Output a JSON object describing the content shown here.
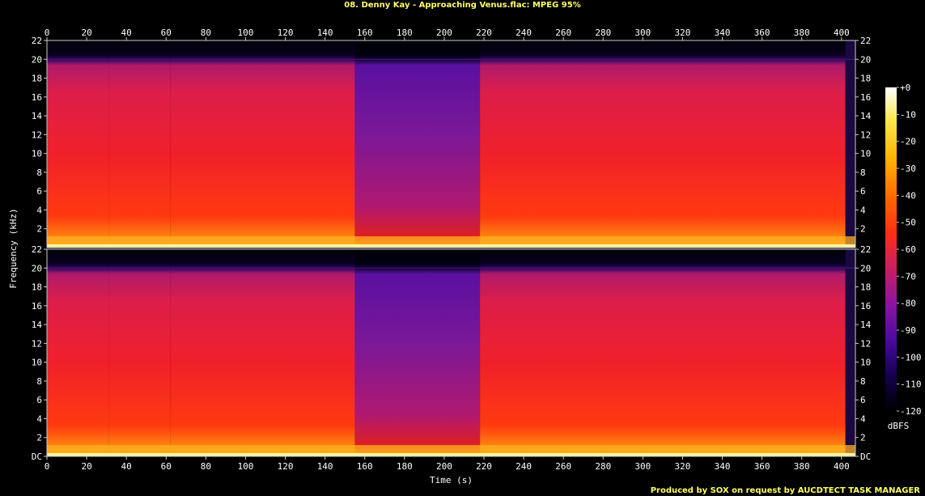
{
  "title": "08. Denny Kay - Approaching Venus.flac: MPEG 95%",
  "credit": "Produced by SOX on request by AUCDTECT TASK MANAGER",
  "chart_data": {
    "type": "heatmap",
    "title": "08. Denny Kay - Approaching Venus.flac: MPEG 95%",
    "xlabel": "Time (s)",
    "ylabel": "Frequency (kHz)",
    "colorbar_label": "dBFS",
    "xlim": [
      0,
      407
    ],
    "ylim": [
      0,
      22
    ],
    "x_ticks": [
      0,
      20,
      40,
      60,
      80,
      100,
      120,
      140,
      160,
      180,
      200,
      220,
      240,
      260,
      280,
      300,
      320,
      340,
      360,
      380,
      400
    ],
    "y_tick_labels": [
      "DC",
      "2",
      "4",
      "6",
      "8",
      "10",
      "12",
      "14",
      "16",
      "18",
      "20",
      "22"
    ],
    "y_tick_values": [
      0,
      2,
      4,
      6,
      8,
      10,
      12,
      14,
      16,
      18,
      20,
      22
    ],
    "colorbar_ticks": [
      "+0",
      "-10",
      "-20",
      "-30",
      "-40",
      "-50",
      "-60",
      "-70",
      "-80",
      "-90",
      "-100",
      "-110",
      "-120"
    ],
    "colorbar_range": [
      -120,
      0
    ],
    "channels": 2,
    "cutoff_khz": 20,
    "segments": [
      {
        "start": 0,
        "end": 31,
        "level": "loud"
      },
      {
        "start": 31,
        "end": 62,
        "level": "loud"
      },
      {
        "start": 62,
        "end": 155,
        "level": "loud"
      },
      {
        "start": 155,
        "end": 218,
        "level": "quiet"
      },
      {
        "start": 218,
        "end": 407,
        "level": "loud"
      }
    ],
    "colors": {
      "colormap": [
        "#000000",
        "#140050",
        "#4b0aa0",
        "#8c14a0",
        "#c81e64",
        "#ff2d14",
        "#ff6e00",
        "#ffb400",
        "#ffe650",
        "#ffffff"
      ]
    }
  }
}
